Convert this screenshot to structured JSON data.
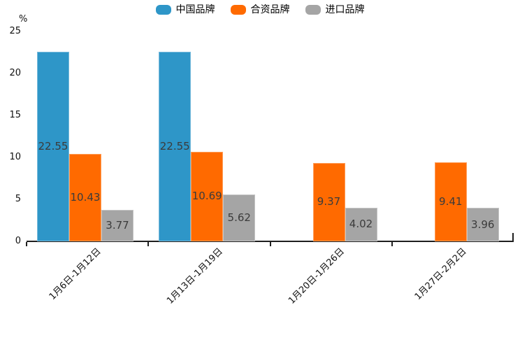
{
  "chart_data": {
    "type": "bar",
    "title": "",
    "ylabel": "%",
    "xlabel": "",
    "ylim": [
      0,
      25
    ],
    "yticks": [
      0,
      5,
      10,
      15,
      20,
      25
    ],
    "grid": false,
    "legend_position": "top",
    "bar_labels": true,
    "categories": [
      "1月6日-1月12日",
      "1月13日-1月19日",
      "1月20日-1月26日",
      "1月27日-2月2日"
    ],
    "series": [
      {
        "name": "中国品牌",
        "key": "china-brand",
        "color": "#2E96C8",
        "values": [
          22.55,
          22.55,
          null,
          null
        ]
      },
      {
        "name": "合资品牌",
        "key": "joint-venture-brand",
        "color": "#FF6A00",
        "values": [
          10.43,
          10.69,
          9.37,
          9.41
        ]
      },
      {
        "name": "进口品牌",
        "key": "import-brand",
        "color": "#A5A5A5",
        "values": [
          3.77,
          5.62,
          4.02,
          3.96
        ]
      }
    ],
    "label_color": "#3b3b3b",
    "axis_color": "#1f1f1f"
  }
}
